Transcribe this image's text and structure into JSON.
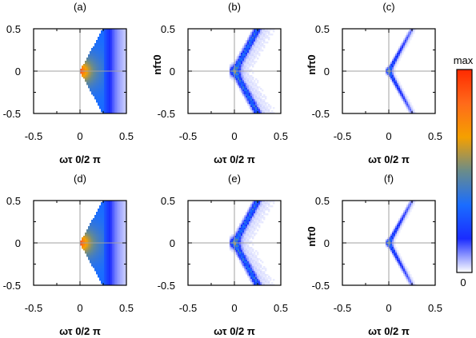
{
  "chart_data": [
    {
      "panel": "(a)",
      "type": "heatmap",
      "xlabel": "ωτ 0/2 π",
      "ylabel": "",
      "xlim": [
        -0.5,
        0.5
      ],
      "ylim": [
        -0.5,
        0.5
      ],
      "xticks": [
        "-0.5",
        "0",
        "0.5"
      ],
      "yticks": [
        "0.5",
        "0",
        "-0.5"
      ],
      "pattern": "filled-wedge",
      "apex": [
        0.0,
        0.0
      ],
      "edge_slope": 2.0,
      "peak_intensity": 1.0
    },
    {
      "panel": "(b)",
      "type": "heatmap",
      "xlabel": "ωτ 0/2 π",
      "ylabel": "nfτ0",
      "xlim": [
        -0.5,
        0.5
      ],
      "ylim": [
        -0.5,
        0.5
      ],
      "xticks": [
        "-0.5",
        "0",
        "0.5"
      ],
      "yticks": [
        "0.5",
        "0",
        "-0.5"
      ],
      "pattern": "speckled-v",
      "apex": [
        0.0,
        0.0
      ],
      "edge_slope": 2.0,
      "peak_intensity": 0.55
    },
    {
      "panel": "(c)",
      "type": "heatmap",
      "xlabel": "ωτ 0/2 π",
      "ylabel": "nfτ0",
      "xlim": [
        -0.5,
        0.5
      ],
      "ylim": [
        -0.5,
        0.5
      ],
      "xticks": [
        "-0.5",
        "0",
        "0.5"
      ],
      "yticks": [
        "0.5",
        "0",
        "-0.5"
      ],
      "pattern": "thin-v",
      "apex": [
        0.0,
        0.0
      ],
      "edge_slope": 2.0,
      "peak_intensity": 0.45
    },
    {
      "panel": "(d)",
      "type": "heatmap",
      "xlabel": "ωτ 0/2 π",
      "ylabel": "",
      "xlim": [
        -0.5,
        0.5
      ],
      "ylim": [
        -0.5,
        0.5
      ],
      "xticks": [
        "-0.5",
        "0",
        "0.5"
      ],
      "yticks": [
        "0.5",
        "0",
        "-0.5"
      ],
      "pattern": "filled-wedge",
      "apex": [
        0.0,
        0.0
      ],
      "edge_slope": 2.0,
      "peak_intensity": 1.0
    },
    {
      "panel": "(e)",
      "type": "heatmap",
      "xlabel": "ωτ 0/2 π",
      "ylabel": "",
      "xlim": [
        -0.5,
        0.5
      ],
      "ylim": [
        -0.5,
        0.5
      ],
      "xticks": [
        "-0.5",
        "0",
        "0.5"
      ],
      "yticks": [
        "0.5",
        "0",
        "-0.5"
      ],
      "pattern": "speckled-v",
      "apex": [
        0.0,
        0.0
      ],
      "edge_slope": 2.0,
      "peak_intensity": 0.55
    },
    {
      "panel": "(f)",
      "type": "heatmap",
      "xlabel": "ωτ 0/2 π",
      "ylabel": "nfτ0",
      "xlim": [
        -0.5,
        0.5
      ],
      "ylim": [
        -0.5,
        0.5
      ],
      "xticks": [
        "-0.5",
        "0",
        "0.5"
      ],
      "yticks": [
        "0.5",
        "0",
        "-0.5"
      ],
      "pattern": "thin-v",
      "apex": [
        0.0,
        0.0
      ],
      "edge_slope": 2.0,
      "peak_intensity": 0.45
    }
  ],
  "colorbar": {
    "max_label": "max",
    "min_label": "0",
    "stops": [
      "#ffffff",
      "#1a2cff",
      "#1a6dff",
      "#6a8c8a",
      "#f5a000",
      "#ff6a1a",
      "#ff2a00"
    ]
  }
}
